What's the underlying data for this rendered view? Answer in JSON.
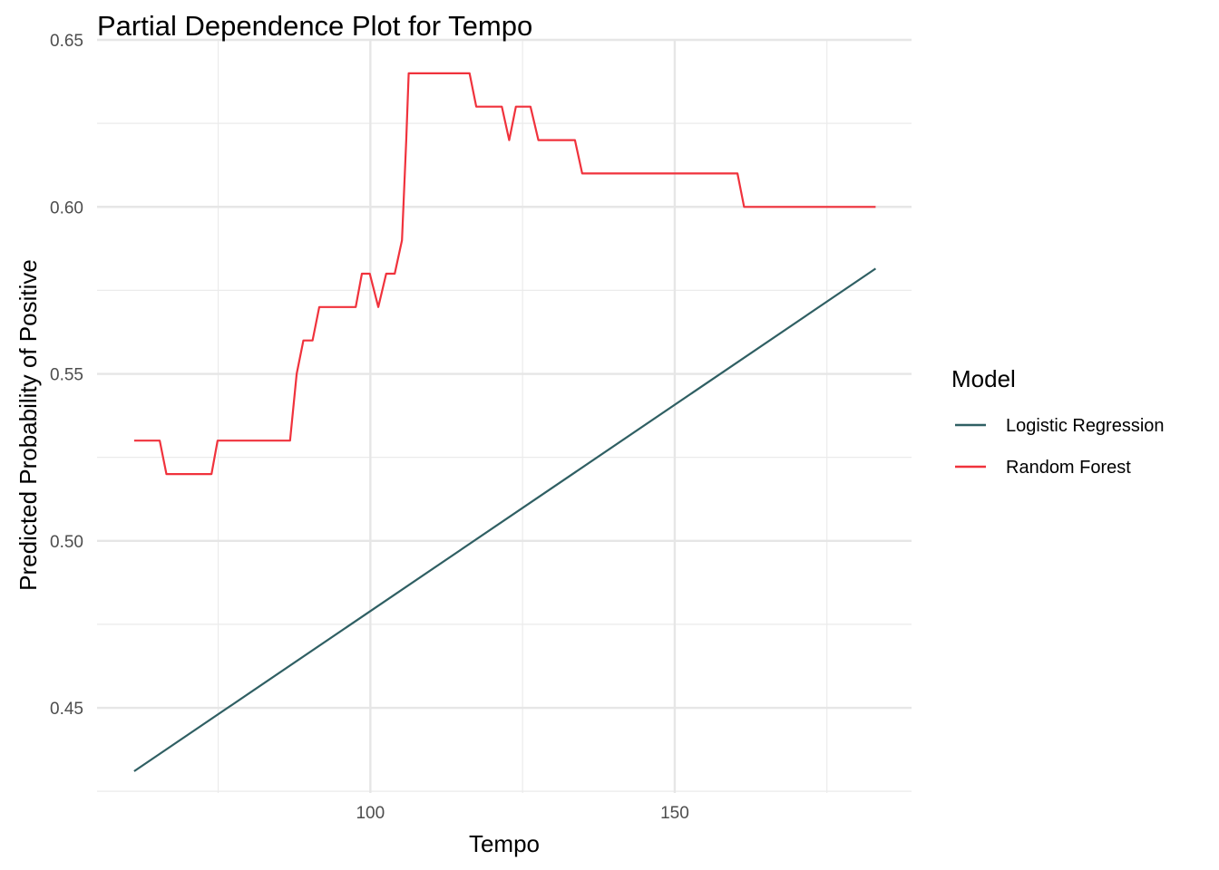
{
  "chart_data": {
    "type": "line",
    "title": "Partial Dependence Plot for Tempo",
    "xlabel": "Tempo",
    "ylabel": "Predicted Probability of Positive",
    "xlim": [
      55.1,
      188.9
    ],
    "ylim": [
      0.4245,
      0.65
    ],
    "x_ticks": [
      100,
      150
    ],
    "x_tick_labels": [
      "100",
      "150"
    ],
    "x_minor_ticks": [
      75,
      125,
      175
    ],
    "y_ticks": [
      0.45,
      0.5,
      0.55,
      0.6,
      0.65
    ],
    "y_tick_labels": [
      "0.45",
      "0.50",
      "0.55",
      "0.60",
      "0.65"
    ],
    "y_minor_ticks": [
      0.425,
      0.475,
      0.525,
      0.575,
      0.625
    ],
    "grid": true,
    "legend": {
      "title": "Model",
      "position": "right"
    },
    "series": [
      {
        "name": "Logistic Regression",
        "color": "#2f5f63",
        "x": [
          61.2,
          183.0
        ],
        "y": [
          0.431,
          0.5815
        ]
      },
      {
        "name": "Random Forest",
        "color": "#f0323c",
        "x": [
          61.2,
          65.4,
          66.5,
          73.9,
          74.9,
          86.8,
          87.9,
          89.0,
          90.5,
          91.6,
          97.6,
          98.6,
          99.9,
          101.3,
          102.6,
          104.0,
          105.2,
          105.9,
          106.3,
          116.3,
          117.4,
          121.6,
          122.8,
          123.9,
          126.3,
          127.6,
          133.6,
          134.8,
          160.3,
          161.4,
          183.0
        ],
        "y": [
          0.53,
          0.53,
          0.52,
          0.52,
          0.53,
          0.53,
          0.55,
          0.56,
          0.56,
          0.57,
          0.57,
          0.58,
          0.58,
          0.57,
          0.58,
          0.58,
          0.59,
          0.62,
          0.64,
          0.64,
          0.63,
          0.63,
          0.62,
          0.63,
          0.63,
          0.62,
          0.62,
          0.61,
          0.61,
          0.6,
          0.6
        ]
      }
    ]
  }
}
